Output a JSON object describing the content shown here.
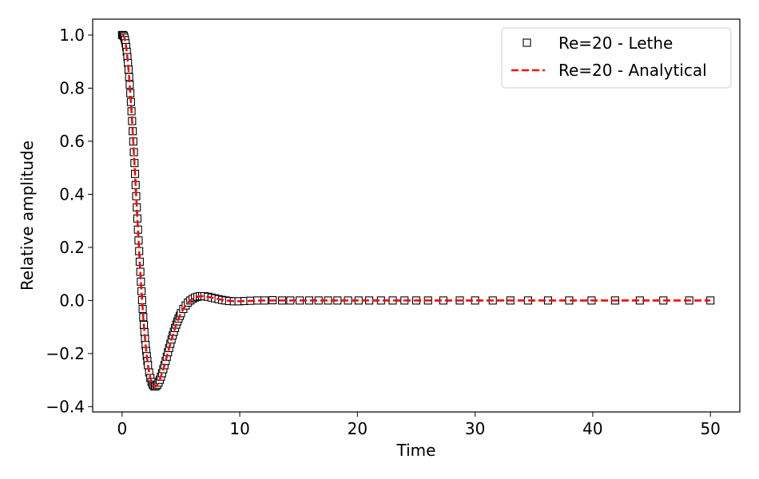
{
  "chart_data": {
    "type": "line",
    "xlabel": "Time",
    "ylabel": "Relative amplitude",
    "xlim": [
      -2.5,
      52.5
    ],
    "ylim": [
      -0.42,
      1.06
    ],
    "xticks": [
      0,
      10,
      20,
      30,
      40,
      50
    ],
    "xtick_labels": [
      "0",
      "10",
      "20",
      "30",
      "40",
      "50"
    ],
    "yticks": [
      -0.4,
      -0.2,
      0.0,
      0.2,
      0.4,
      0.6,
      0.8,
      1.0
    ],
    "ytick_labels": [
      "−0.4",
      "−0.2",
      "0.0",
      "0.2",
      "0.4",
      "0.6",
      "0.8",
      "1.0"
    ],
    "grid": false,
    "legend_position": "top-right",
    "series": [
      {
        "name": "Re=20 - Lethe",
        "style": "square-markers",
        "color": "#000000",
        "x": [
          0.0,
          0.05,
          0.1,
          0.15,
          0.2,
          0.25,
          0.3,
          0.35,
          0.4,
          0.45,
          0.5,
          0.55,
          0.6,
          0.65,
          0.7,
          0.75,
          0.8,
          0.85,
          0.9,
          0.95,
          1.0,
          1.05,
          1.1,
          1.15,
          1.2,
          1.25,
          1.3,
          1.35,
          1.4,
          1.45,
          1.5,
          1.55,
          1.6,
          1.65,
          1.7,
          1.75,
          1.8,
          1.85,
          1.9,
          1.95,
          2.0,
          2.05,
          2.1,
          2.15,
          2.2,
          2.3,
          2.4,
          2.5,
          2.6,
          2.7,
          2.8,
          2.9,
          3.0,
          3.1,
          3.2,
          3.3,
          3.4,
          3.5,
          3.6,
          3.7,
          3.8,
          3.9,
          4.0,
          4.1,
          4.2,
          4.3,
          4.4,
          4.5,
          4.6,
          4.7,
          4.8,
          4.9,
          5.0,
          5.2,
          5.4,
          5.6,
          5.8,
          6.0,
          6.2,
          6.4,
          6.6,
          6.8,
          7.0,
          7.3,
          7.6,
          7.9,
          8.2,
          8.5,
          8.8,
          9.1,
          9.5,
          9.9,
          10.4,
          10.9,
          11.5,
          12.1,
          12.8,
          13.6,
          14.3,
          15.1,
          15.9,
          16.7,
          17.5,
          18.3,
          19.2,
          20.1,
          21.0,
          22.0,
          23.0,
          24.0,
          25.0,
          26.0,
          27.3,
          28.7,
          30.0,
          31.5,
          33.0,
          34.5,
          36.2,
          38.0,
          39.9,
          41.9,
          44.0,
          46.0,
          48.2,
          50.0
        ],
        "y": [
          1.0,
          1.0,
          0.999,
          0.996,
          0.99,
          0.981,
          0.969,
          0.955,
          0.937,
          0.917,
          0.895,
          0.87,
          0.842,
          0.813,
          0.781,
          0.748,
          0.713,
          0.676,
          0.638,
          0.599,
          0.559,
          0.518,
          0.477,
          0.435,
          0.393,
          0.351,
          0.309,
          0.267,
          0.226,
          0.186,
          0.146,
          0.108,
          0.071,
          0.035,
          0.001,
          -0.032,
          -0.063,
          -0.092,
          -0.119,
          -0.145,
          -0.168,
          -0.19,
          -0.21,
          -0.228,
          -0.244,
          -0.271,
          -0.292,
          -0.307,
          -0.317,
          -0.323,
          -0.324,
          -0.322,
          -0.317,
          -0.309,
          -0.299,
          -0.287,
          -0.274,
          -0.259,
          -0.244,
          -0.228,
          -0.212,
          -0.195,
          -0.179,
          -0.163,
          -0.147,
          -0.132,
          -0.118,
          -0.104,
          -0.091,
          -0.079,
          -0.068,
          -0.058,
          -0.048,
          -0.032,
          -0.019,
          -0.008,
          0.0,
          0.006,
          0.011,
          0.014,
          0.016,
          0.016,
          0.016,
          0.014,
          0.011,
          0.008,
          0.005,
          0.002,
          0.0,
          -0.002,
          -0.003,
          -0.003,
          -0.002,
          -0.001,
          0.0,
          0.0,
          0.001,
          0.0,
          0.0,
          0.0,
          0.0,
          0.0,
          0.0,
          0.0,
          0.0,
          0.0,
          0.0,
          0.0,
          0.0,
          0.0,
          0.0,
          0.0,
          0.0,
          0.0,
          0.0,
          0.0,
          0.0,
          0.0,
          0.0,
          0.0,
          0.0,
          0.0,
          0.0,
          0.0,
          0.0,
          0.0
        ]
      },
      {
        "name": "Re=20 - Analytical",
        "style": "dashed-line",
        "color": "#ff0000",
        "x": [
          0.0,
          0.1,
          0.2,
          0.3,
          0.4,
          0.5,
          0.6,
          0.7,
          0.8,
          0.9,
          1.0,
          1.1,
          1.2,
          1.3,
          1.4,
          1.5,
          1.6,
          1.7,
          1.8,
          1.9,
          2.0,
          2.1,
          2.2,
          2.3,
          2.4,
          2.5,
          2.6,
          2.7,
          2.8,
          2.9,
          3.0,
          3.2,
          3.4,
          3.6,
          3.8,
          4.0,
          4.2,
          4.4,
          4.6,
          4.8,
          5.0,
          5.3,
          5.6,
          5.9,
          6.2,
          6.5,
          6.8,
          7.1,
          7.5,
          7.9,
          8.3,
          8.8,
          9.3,
          9.8,
          10.5,
          11.2,
          12.0,
          13.0,
          14.0,
          15.0,
          17.0,
          20.0,
          25.0,
          30.0,
          35.0,
          40.0,
          45.0,
          50.0
        ],
        "y": [
          1.0,
          0.999,
          0.99,
          0.969,
          0.937,
          0.895,
          0.842,
          0.781,
          0.713,
          0.638,
          0.559,
          0.477,
          0.393,
          0.309,
          0.226,
          0.146,
          0.071,
          0.001,
          -0.063,
          -0.119,
          -0.168,
          -0.21,
          -0.244,
          -0.271,
          -0.292,
          -0.307,
          -0.317,
          -0.323,
          -0.324,
          -0.322,
          -0.317,
          -0.299,
          -0.274,
          -0.244,
          -0.212,
          -0.179,
          -0.147,
          -0.118,
          -0.091,
          -0.068,
          -0.048,
          -0.025,
          -0.008,
          0.003,
          0.011,
          0.015,
          0.016,
          0.015,
          0.012,
          0.008,
          0.004,
          0.0,
          -0.002,
          -0.003,
          -0.002,
          -0.001,
          0.0,
          0.0,
          0.0,
          0.0,
          0.0,
          0.0,
          0.0,
          0.0,
          0.0,
          0.0,
          0.0,
          0.0
        ]
      }
    ]
  }
}
